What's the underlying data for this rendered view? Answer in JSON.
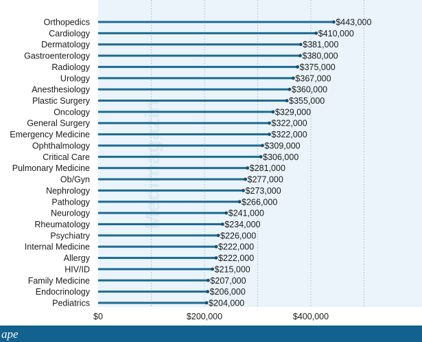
{
  "chart_data": {
    "type": "bar",
    "orientation": "horizontal",
    "categories": [
      "Orthopedics",
      "Cardiology",
      "Dermatology",
      "Gastroenterology",
      "Radiology",
      "Urology",
      "Anesthesiology",
      "Plastic Surgery",
      "Oncology",
      "General Surgery",
      "Emergency Medicine",
      "Ophthalmology",
      "Critical Care",
      "Pulmonary Medicine",
      "Ob/Gyn",
      "Nephrology",
      "Pathology",
      "Neurology",
      "Rheumatology",
      "Psychiatry",
      "Internal Medicine",
      "Allergy",
      "HIV/ID",
      "Family Medicine",
      "Endocrinology",
      "Pediatrics"
    ],
    "values": [
      443000,
      410000,
      381000,
      380000,
      375000,
      367000,
      360000,
      355000,
      329000,
      322000,
      322000,
      309000,
      306000,
      281000,
      277000,
      273000,
      266000,
      241000,
      234000,
      226000,
      222000,
      222000,
      215000,
      207000,
      206000,
      204000
    ],
    "value_labels": [
      "$443,000",
      "$410,000",
      "$381,000",
      "$380,000",
      "$375,000",
      "$367,000",
      "$360,000",
      "$355,000",
      "$329,000",
      "$322,000",
      "$322,000",
      "$309,000",
      "$306,000",
      "$281,000",
      "$277,000",
      "$273,000",
      "$266,000",
      "$241,000",
      "$234,000",
      "$226,000",
      "$222,000",
      "$222,000",
      "$215,000",
      "$207,000",
      "$206,000",
      "$204,000"
    ],
    "xlim": [
      0,
      600000
    ],
    "xticks": [
      0,
      200000,
      400000
    ],
    "xtick_labels": [
      "$0",
      "$200,000",
      "$400,000"
    ],
    "title": "",
    "xlabel": "",
    "ylabel": "",
    "grid": true
  },
  "watermark": "Medimagazin",
  "brand": "ape",
  "colors": {
    "bar": "#1d6a93",
    "plot_bg": "#eaf4fa",
    "grid": "#9fbfd1",
    "footer": "#12618f",
    "marker": "#174f70"
  }
}
